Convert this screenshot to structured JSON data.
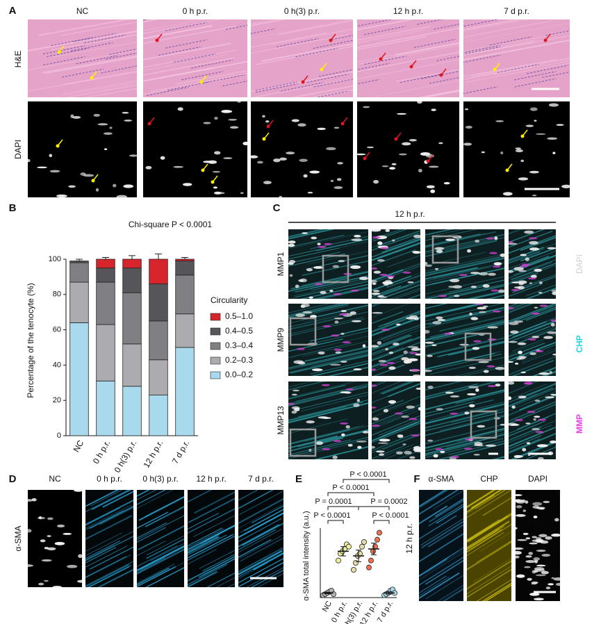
{
  "panels": {
    "a": {
      "label": "A",
      "columns": [
        "NC",
        "0 h p.r.",
        "0 h(3) p.r.",
        "12 h p.r.",
        "7 d p.r."
      ],
      "rows": [
        "H&E",
        "DAPI"
      ]
    },
    "c": {
      "label": "C",
      "header": "12 h p.r.",
      "rows": [
        "MMP1",
        "MMP9",
        "MMP13"
      ],
      "channels": [
        "DAPI",
        "CHP",
        "MMP"
      ]
    },
    "d": {
      "label": "D",
      "columns": [
        "NC",
        "0 h p.r.",
        "0 h(3) p.r.",
        "12 h p.r.",
        "7 d p.r."
      ],
      "row": "α-SMA"
    },
    "f": {
      "label": "F",
      "columns": [
        "α-SMA",
        "CHP",
        "DAPI"
      ],
      "row": "12 h p.r."
    }
  },
  "chart_data": [
    {
      "type": "stacked_bar",
      "label": "B",
      "title": "Chi-square P < 0.0001",
      "y_label": "Percentage of the tenocyte (%)",
      "legend_title": "Circularity",
      "categories": [
        "NC",
        "0 h p.r.",
        "0 h(3) p.r.",
        "12 h p.r.",
        "7 d p.r."
      ],
      "ylim": [
        0,
        100
      ],
      "yticks": [
        0,
        20,
        40,
        60,
        80,
        100
      ],
      "series": [
        {
          "name": "0.0–0.2",
          "color": "#a9d9ec",
          "values": [
            64,
            31,
            28,
            23,
            50
          ],
          "errors": [
            3,
            4,
            2,
            3,
            4
          ]
        },
        {
          "name": "0.2–0.3",
          "color": "#acacb0",
          "values": [
            23,
            32,
            24,
            20,
            19
          ],
          "errors": [
            3,
            4,
            3,
            2,
            2
          ]
        },
        {
          "name": "0.3–0.4",
          "color": "#808084",
          "values": [
            11,
            24,
            29,
            22,
            22
          ],
          "errors": [
            1,
            2,
            2,
            2,
            2
          ]
        },
        {
          "name": "0.4–0.5",
          "color": "#56565a",
          "values": [
            1,
            8,
            14,
            21,
            8
          ],
          "errors": [
            1,
            1,
            2,
            2,
            1
          ]
        },
        {
          "name": "0.5–1.0",
          "color": "#d7262b",
          "values": [
            0,
            5,
            5,
            14,
            1
          ],
          "errors": [
            0,
            1,
            2,
            3,
            1
          ]
        }
      ]
    },
    {
      "type": "dot_plot",
      "label": "E",
      "y_label": "α-SMA total intensity (a.u.)",
      "categories": [
        "NC",
        "0 h p.r.",
        "0 h(3) p.r.",
        "12 h p.r.",
        "7 d p.r."
      ],
      "colors": [
        "#b5b5b5",
        "#eeeea0",
        "#e4dfa6",
        "#f0704f",
        "#a9d9ec"
      ],
      "ylim": [
        0,
        3
      ],
      "points": [
        [
          0.1,
          0.15,
          0.2,
          0.25,
          0.3,
          0.15
        ],
        [
          1.6,
          1.9,
          2.0,
          2.1,
          2.3,
          2.2
        ],
        [
          1.2,
          1.5,
          1.8,
          1.9,
          2.2,
          2.4
        ],
        [
          1.3,
          1.6,
          2.0,
          2.2,
          2.5,
          2.8
        ],
        [
          0.1,
          0.15,
          0.2,
          0.3,
          0.35,
          0.2
        ]
      ],
      "means": [
        0.2,
        2.0,
        1.8,
        2.1,
        0.2
      ],
      "errors": [
        0.03,
        0.2,
        0.25,
        0.25,
        0.05
      ],
      "comparisons": [
        "P < 0.0001",
        "P < 0.0001",
        "P = 0.0001",
        "P = 0.0002",
        "P < 0.0001",
        "P < 0.0001"
      ]
    }
  ]
}
